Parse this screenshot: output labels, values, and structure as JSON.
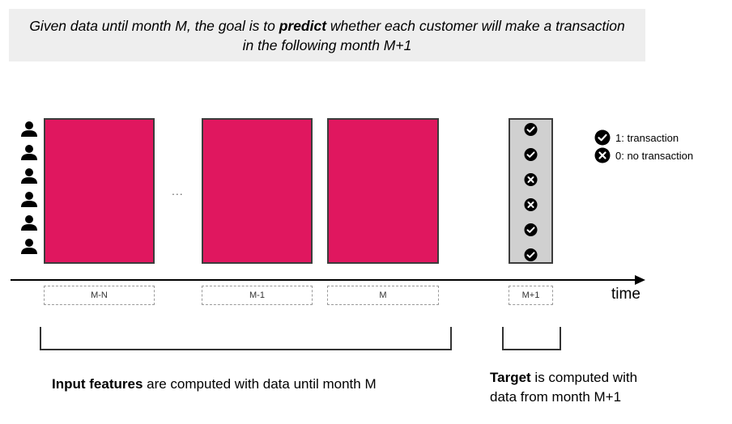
{
  "header": {
    "text_before": "Given data until month M, the goal is to ",
    "text_bold": "predict",
    "text_after": " whether each customer will make a transaction in the following month M+1"
  },
  "colors": {
    "block_fill": "#e0175f",
    "block_border": "#3c3c3c",
    "target_fill": "#d0d0d0",
    "header_bg": "#eeeeee"
  },
  "customers": {
    "icon": "person-icon",
    "count": 6
  },
  "ellipsis": "...",
  "months": [
    "M-N",
    "M-1",
    "M",
    "M+1"
  ],
  "axis_label": "time",
  "targets": [
    1,
    1,
    0,
    0,
    1,
    1
  ],
  "legend": {
    "positive": {
      "icon": "check-circle-icon",
      "label": "1: transaction"
    },
    "negative": {
      "icon": "x-circle-icon",
      "label": "0: no transaction"
    }
  },
  "captions": {
    "input_bold": "Input features",
    "input_rest": " are computed with data until month M",
    "target_bold": "Target",
    "target_rest_line1": " is computed with",
    "target_rest_line2": "data from month M+1"
  }
}
